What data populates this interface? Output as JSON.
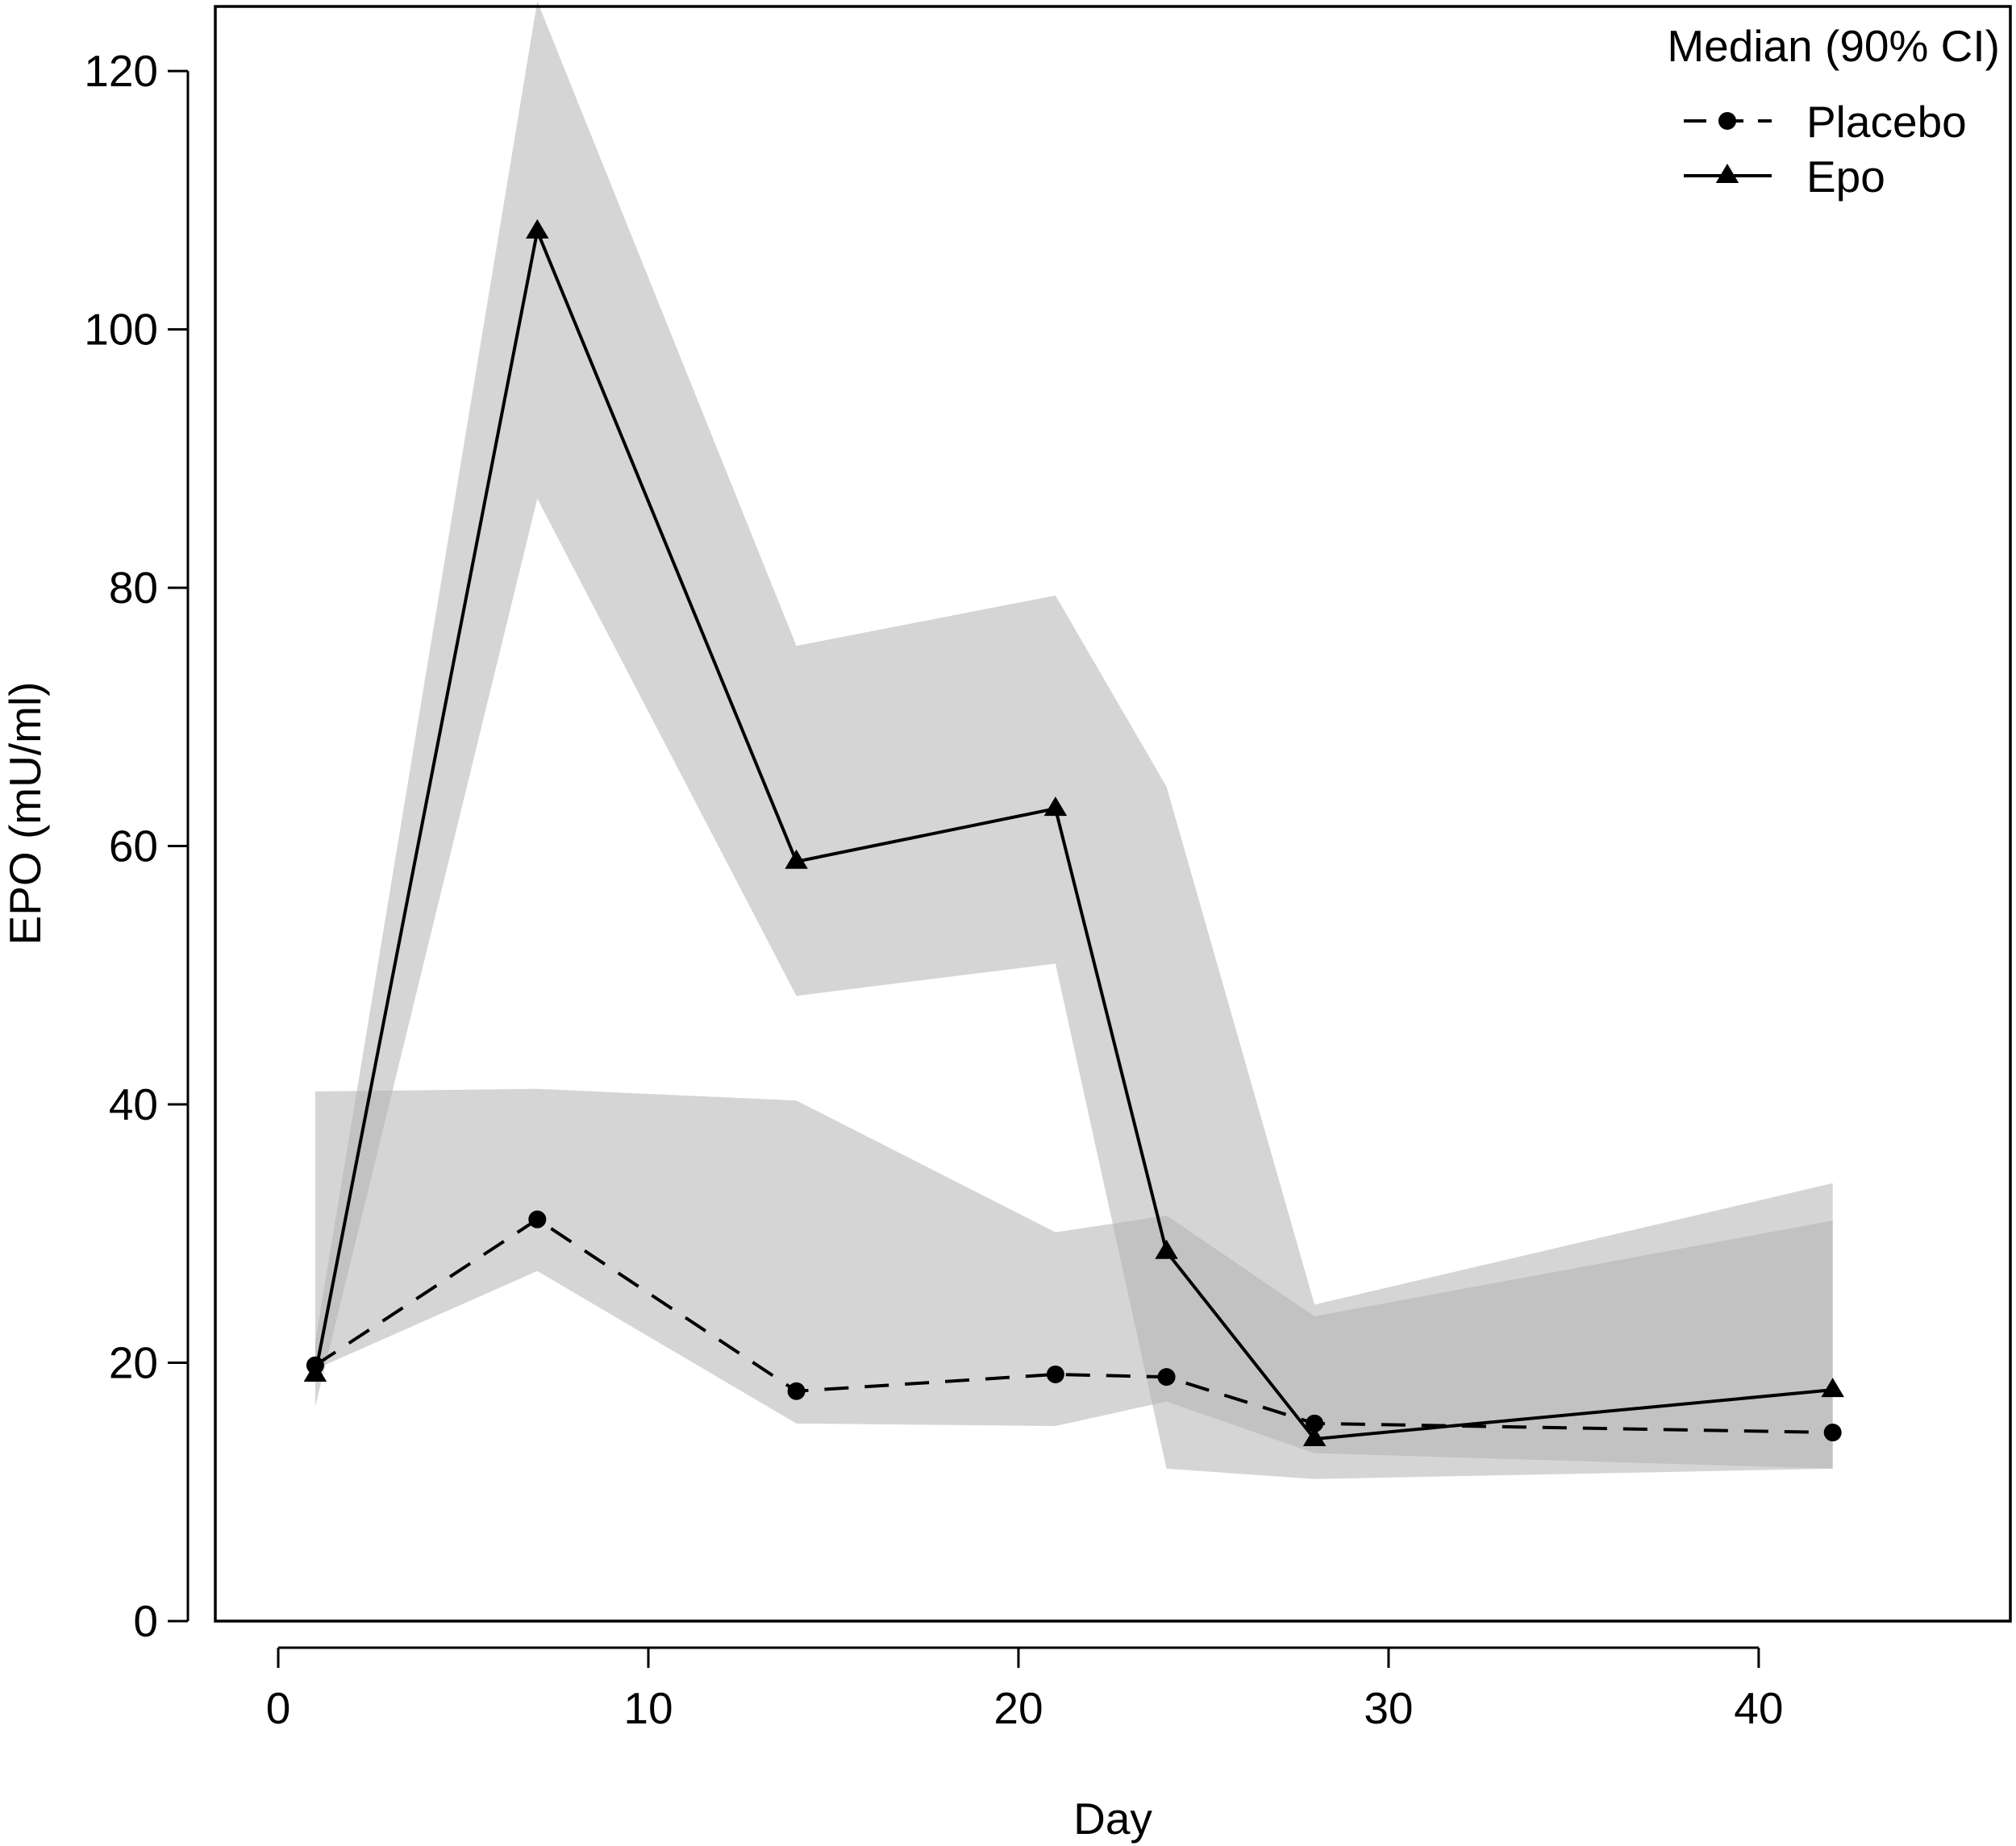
{
  "chart_data": {
    "type": "line",
    "xlabel": "Day",
    "ylabel": "EPO (mU/ml)",
    "xlim": [
      -1.7,
      46.8
    ],
    "ylim": [
      0,
      125
    ],
    "xticks": [
      0,
      10,
      20,
      30,
      40
    ],
    "yticks": [
      0,
      20,
      40,
      60,
      80,
      100,
      120
    ],
    "grid": false,
    "legend": {
      "title": "Median (90% CI)",
      "position": "top-right"
    },
    "series": [
      {
        "name": "Placebo",
        "line_style": "dashed",
        "marker": "circle",
        "color": "#000000",
        "x": [
          1,
          7,
          14,
          21,
          24,
          28,
          42
        ],
        "y": [
          19.8,
          31.1,
          17.8,
          19.1,
          18.9,
          15.3,
          14.6
        ],
        "ci_lower": [
          19.5,
          27.1,
          15.3,
          15.1,
          17.0,
          13.0,
          11.8
        ],
        "ci_upper": [
          41.0,
          41.2,
          40.3,
          30.1,
          31.4,
          23.6,
          31.0
        ]
      },
      {
        "name": "Epo",
        "line_style": "solid",
        "marker": "triangle",
        "color": "#000000",
        "x": [
          1,
          7,
          14,
          21,
          24,
          28,
          42
        ],
        "y": [
          19.1,
          107.6,
          58.8,
          62.9,
          28.6,
          14.1,
          17.9
        ],
        "ci_lower": [
          16.6,
          86.9,
          48.4,
          50.9,
          11.8,
          11.0,
          11.8
        ],
        "ci_upper": [
          21.6,
          125.4,
          75.5,
          79.4,
          64.6,
          24.5,
          33.9
        ]
      }
    ],
    "ci_band_color": "#b3b3b3"
  }
}
